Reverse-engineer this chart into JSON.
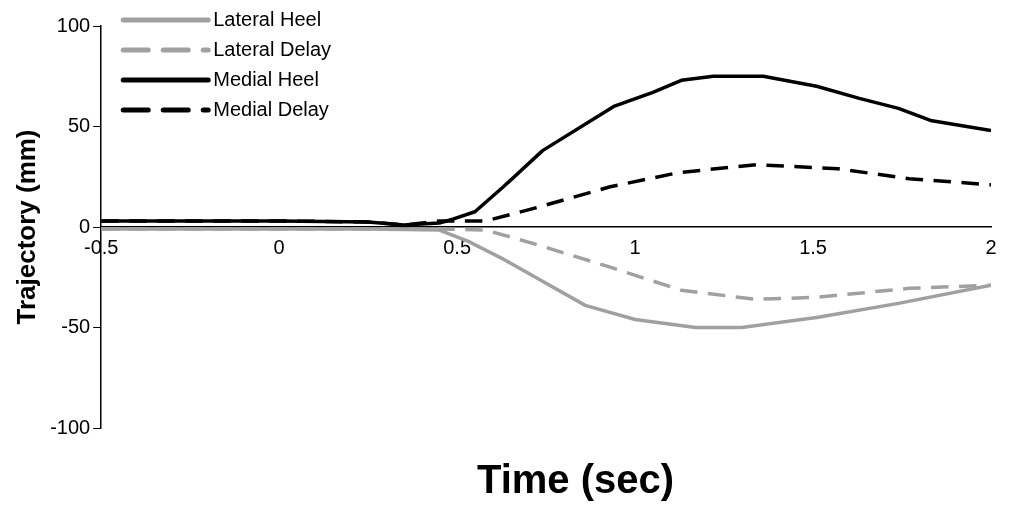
{
  "chart_data": {
    "type": "line",
    "xlabel": "Time (sec)",
    "ylabel": "Trajectory (mm)",
    "xlim": [
      -0.5,
      2
    ],
    "xticks": [
      -0.5,
      0,
      0.5,
      1,
      1.5,
      2
    ],
    "ylim": [
      -100,
      100
    ],
    "yticks": [
      -100,
      -50,
      0,
      50,
      100
    ],
    "grid": false,
    "legend": "top left",
    "marker": "none",
    "series": [
      {
        "name": "Lateral Heel",
        "color": "#a0a0a0",
        "line_style": "solid",
        "x": [
          -0.5,
          -0.3,
          0,
          0.25,
          0.45,
          0.53,
          0.63,
          0.73,
          0.86,
          1.0,
          1.17,
          1.3,
          1.51,
          1.74,
          2.0
        ],
        "values": [
          -1,
          -1,
          -1,
          -1,
          -1.5,
          -7,
          -16,
          -26,
          -39,
          -46,
          -50,
          -50,
          -45,
          -38,
          -29
        ]
      },
      {
        "name": "Lateral Delay",
        "color": "#a0a0a0",
        "line_style": "dashed",
        "x": [
          -0.5,
          -0.3,
          0,
          0.25,
          0.45,
          0.58,
          0.71,
          0.93,
          1.13,
          1.34,
          1.51,
          1.77,
          2.0
        ],
        "values": [
          -1,
          -1,
          -1,
          -1,
          -1,
          -1.5,
          -8,
          -20,
          -31.5,
          -36,
          -35,
          -30.5,
          -29
        ]
      },
      {
        "name": "Medial Heel",
        "color": "#000000",
        "line_style": "solid",
        "x": [
          -0.5,
          -0.25,
          0,
          0.25,
          0.35,
          0.45,
          0.49,
          0.55,
          0.63,
          0.74,
          0.94,
          1.05,
          1.13,
          1.22,
          1.36,
          1.51,
          1.63,
          1.74,
          1.83,
          2.0
        ],
        "values": [
          3,
          3,
          3,
          2.5,
          1,
          2,
          4,
          7.6,
          20,
          38,
          60,
          67,
          73,
          75,
          75,
          70,
          64,
          59,
          53,
          48
        ]
      },
      {
        "name": "Medial Delay",
        "color": "#000000",
        "line_style": "dashed",
        "x": [
          -0.5,
          -0.25,
          0,
          0.25,
          0.35,
          0.45,
          0.58,
          0.71,
          0.93,
          1.12,
          1.34,
          1.57,
          1.77,
          2.0
        ],
        "values": [
          3,
          3,
          3,
          2.5,
          1,
          3,
          3,
          9,
          20,
          27,
          31,
          29,
          24,
          21
        ]
      }
    ]
  }
}
